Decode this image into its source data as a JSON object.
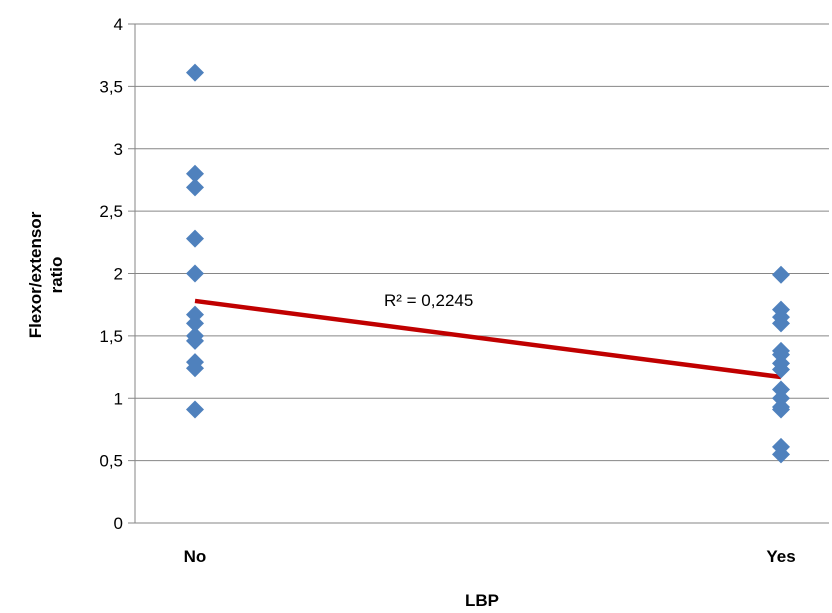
{
  "chart_data": {
    "type": "scatter",
    "title": "",
    "xlabel": "LBP",
    "ylabel_lines": [
      "Flexor/extensor",
      "ratio"
    ],
    "categories": [
      "No",
      "Yes"
    ],
    "ylim": [
      0,
      4
    ],
    "y_ticks": [
      "0",
      "0,5",
      "1",
      "1,5",
      "2",
      "2,5",
      "3",
      "3,5",
      "4"
    ],
    "grid": "horizontal",
    "series": [
      {
        "color": "#4F81BD",
        "marker": "diamond",
        "points": [
          {
            "x": "No",
            "y": 3.61
          },
          {
            "x": "No",
            "y": 2.8
          },
          {
            "x": "No",
            "y": 2.69
          },
          {
            "x": "No",
            "y": 2.28
          },
          {
            "x": "No",
            "y": 2.0
          },
          {
            "x": "No",
            "y": 1.67
          },
          {
            "x": "No",
            "y": 1.6
          },
          {
            "x": "No",
            "y": 1.5
          },
          {
            "x": "No",
            "y": 1.46
          },
          {
            "x": "No",
            "y": 1.29
          },
          {
            "x": "No",
            "y": 1.24
          },
          {
            "x": "No",
            "y": 0.91
          },
          {
            "x": "Yes",
            "y": 1.99
          },
          {
            "x": "Yes",
            "y": 1.71
          },
          {
            "x": "Yes",
            "y": 1.65
          },
          {
            "x": "Yes",
            "y": 1.6
          },
          {
            "x": "Yes",
            "y": 1.38
          },
          {
            "x": "Yes",
            "y": 1.35
          },
          {
            "x": "Yes",
            "y": 1.28
          },
          {
            "x": "Yes",
            "y": 1.23
          },
          {
            "x": "Yes",
            "y": 1.07
          },
          {
            "x": "Yes",
            "y": 1.0
          },
          {
            "x": "Yes",
            "y": 0.93
          },
          {
            "x": "Yes",
            "y": 0.91
          },
          {
            "x": "Yes",
            "y": 0.61
          },
          {
            "x": "Yes",
            "y": 0.55
          }
        ]
      }
    ],
    "trendline": {
      "type": "linear",
      "color": "#C00000",
      "start": {
        "x": "No",
        "y": 1.78
      },
      "end": {
        "x": "Yes",
        "y": 1.17
      },
      "label": "R² = 0,2245"
    }
  }
}
